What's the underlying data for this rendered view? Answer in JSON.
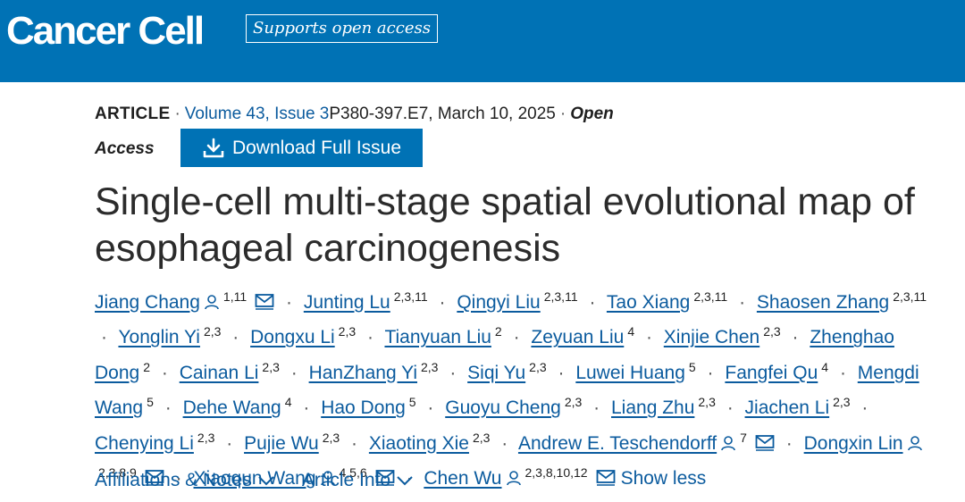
{
  "header": {
    "logo": "Cancer Cell",
    "badge": "Supports open access"
  },
  "meta": {
    "type": "ARTICLE",
    "volume": "Volume 43, Issue 3",
    "pages_date": "P380-397.E7, March 10, 2025",
    "open": "Open",
    "access": "Access"
  },
  "download_label": "Download Full Issue",
  "title": "Single-cell multi-stage spatial evolutional map of esophageal carcinogenesis",
  "authors": [
    {
      "name": "Jiang Chang",
      "aff": "1,11",
      "person": true,
      "mail": true
    },
    {
      "name": "Junting Lu",
      "aff": "2,3,11"
    },
    {
      "name": "Qingyi Liu",
      "aff": "2,3,11"
    },
    {
      "name": "Tao Xiang",
      "aff": "2,3,11"
    },
    {
      "name": "Shaosen Zhang",
      "aff": "2,3,11"
    },
    {
      "name": "Yonglin Yi",
      "aff": "2,3"
    },
    {
      "name": "Dongxu Li",
      "aff": "2,3"
    },
    {
      "name": "Tianyuan Liu",
      "aff": "2"
    },
    {
      "name": "Zeyuan Liu",
      "aff": "4"
    },
    {
      "name": "Xinjie Chen",
      "aff": "2,3"
    },
    {
      "name": "Zhenghao Dong",
      "aff": "2"
    },
    {
      "name": "Cainan Li",
      "aff": "2,3"
    },
    {
      "name": "HanZhang Yi",
      "aff": "2,3"
    },
    {
      "name": "Siqi Yu",
      "aff": "2,3"
    },
    {
      "name": "Luwei Huang",
      "aff": "5"
    },
    {
      "name": "Fangfei Qu",
      "aff": "4"
    },
    {
      "name": "Mengdi Wang",
      "aff": "5"
    },
    {
      "name": "Dehe Wang",
      "aff": "4"
    },
    {
      "name": "Hao Dong",
      "aff": "5"
    },
    {
      "name": "Guoyu Cheng",
      "aff": "2,3"
    },
    {
      "name": "Liang Zhu",
      "aff": "2,3"
    },
    {
      "name": "Jiachen Li",
      "aff": "2,3"
    },
    {
      "name": "Chenying Li",
      "aff": "2,3"
    },
    {
      "name": "Pujie Wu",
      "aff": "2,3"
    },
    {
      "name": "Xiaoting Xie",
      "aff": "2,3"
    },
    {
      "name": "Andrew E. Teschendorff",
      "aff": "7",
      "person": true,
      "mail": true
    },
    {
      "name": "Dongxin Lin",
      "aff": "2,3,8,9",
      "person": true,
      "mail": true
    },
    {
      "name": "Xiaoqun Wang",
      "aff": "4,5,6",
      "person": true,
      "mail": true
    },
    {
      "name": "Chen Wu",
      "aff": "2,3,8,10,12",
      "person": true,
      "mail": true
    }
  ],
  "show_less": "Show less",
  "tabs": {
    "affiliations": "Affiliations & Notes",
    "article_info": "Article Info"
  },
  "colors": {
    "brand": "#0072b5",
    "link": "#0b5b9e"
  }
}
